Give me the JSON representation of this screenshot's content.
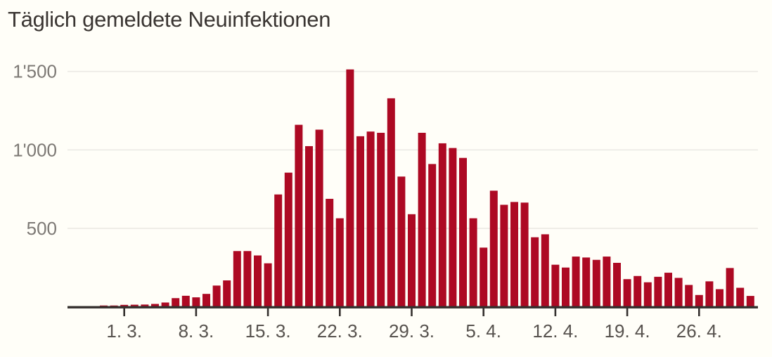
{
  "chart_data": {
    "type": "bar",
    "title": "Täglich gemeldete Neuinfektionen",
    "xlabel": "",
    "ylabel": "",
    "x": [
      "28. 2.",
      "29. 2.",
      "1. 3.",
      "2. 3.",
      "3. 3.",
      "4. 3.",
      "5. 3.",
      "6. 3.",
      "7. 3.",
      "8. 3.",
      "9. 3.",
      "10. 3.",
      "11. 3.",
      "12. 3.",
      "13. 3.",
      "14. 3.",
      "15. 3.",
      "16. 3.",
      "17. 3.",
      "18. 3.",
      "19. 3.",
      "20. 3.",
      "21. 3.",
      "22. 3.",
      "23. 3.",
      "24. 3.",
      "25. 3.",
      "26. 3.",
      "27. 3.",
      "28. 3.",
      "29. 3.",
      "30. 3.",
      "31. 3.",
      "1. 4.",
      "2. 4.",
      "3. 4.",
      "4. 4.",
      "5. 4.",
      "6. 4.",
      "7. 4.",
      "8. 4.",
      "9. 4.",
      "10. 4.",
      "11. 4.",
      "12. 4.",
      "13. 4.",
      "14. 4.",
      "15. 4.",
      "16. 4.",
      "17. 4.",
      "18. 4.",
      "19. 4.",
      "20. 4.",
      "21. 4.",
      "22. 4.",
      "23. 4.",
      "24. 4.",
      "25. 4.",
      "26. 4.",
      "27. 4.",
      "28. 4.",
      "29. 4.",
      "30. 4.",
      "1. 5."
    ],
    "values": [
      8,
      8,
      12,
      13,
      14,
      18,
      27,
      55,
      70,
      60,
      82,
      135,
      168,
      355,
      355,
      327,
      277,
      716,
      855,
      1160,
      1024,
      1129,
      688,
      564,
      1513,
      1087,
      1117,
      1109,
      1329,
      830,
      590,
      1109,
      910,
      1042,
      1012,
      949,
      564,
      377,
      740,
      650,
      668,
      664,
      443,
      462,
      268,
      250,
      320,
      314,
      299,
      320,
      280,
      176,
      196,
      156,
      191,
      217,
      184,
      139,
      75,
      162,
      112,
      247,
      121,
      69
    ],
    "xtick_labels": [
      "1. 3.",
      "8. 3.",
      "15. 3.",
      "22. 3.",
      "29. 3.",
      "5. 4.",
      "12. 4.",
      "19. 4.",
      "26. 4."
    ],
    "xtick_indices": [
      2,
      9,
      16,
      23,
      30,
      37,
      44,
      51,
      58
    ],
    "ytick_labels": [
      "500",
      "1'000",
      "1'500"
    ],
    "ytick_values": [
      500,
      1000,
      1500
    ],
    "ylim": [
      0,
      1560
    ],
    "grid": true,
    "legend_position": "none",
    "bar_color": "#ad0923",
    "background_color": "#fffef8",
    "gridline_color": "#ebe9e4",
    "axis_color": "#34302e",
    "ytick_text_color": "#7d7975",
    "xtick_text_color": "#57524e",
    "title_color": "#3a3532"
  }
}
